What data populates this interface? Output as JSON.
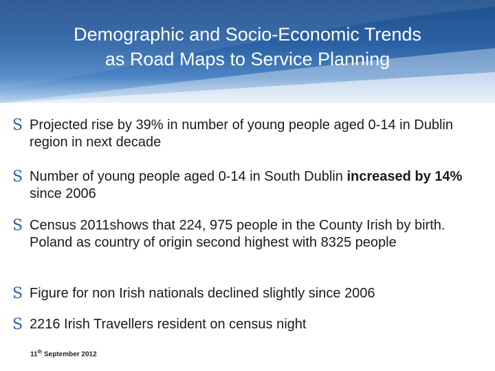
{
  "slide": {
    "title_line1": "Demographic and Socio-Economic Trends",
    "title_line2": "as Road Maps to Service Planning",
    "bullets": [
      {
        "text": "Projected rise by 39% in number of young people aged 0-14 in Dublin region in next decade"
      },
      {
        "pre": "Number of young people aged 0-14 in South Dublin ",
        "bold": "increased by 14%",
        "post": " since 2006"
      },
      {
        "text": "Census 2011shows that 224, 975 people in the County Irish by birth. Poland as country of origin second highest with 8325 people"
      },
      {
        "text": "Figure for non Irish nationals declined slightly since 2006"
      },
      {
        "text": "2216 Irish Travellers resident on census night"
      }
    ],
    "bullet_marker": "S",
    "footer": {
      "date_day": "11",
      "date_suffix": "th",
      "date_rest": " September 2012"
    },
    "colors": {
      "header": "#2b63a6",
      "bullet_marker": "#2b63a6",
      "text": "#1a1a1a"
    }
  }
}
